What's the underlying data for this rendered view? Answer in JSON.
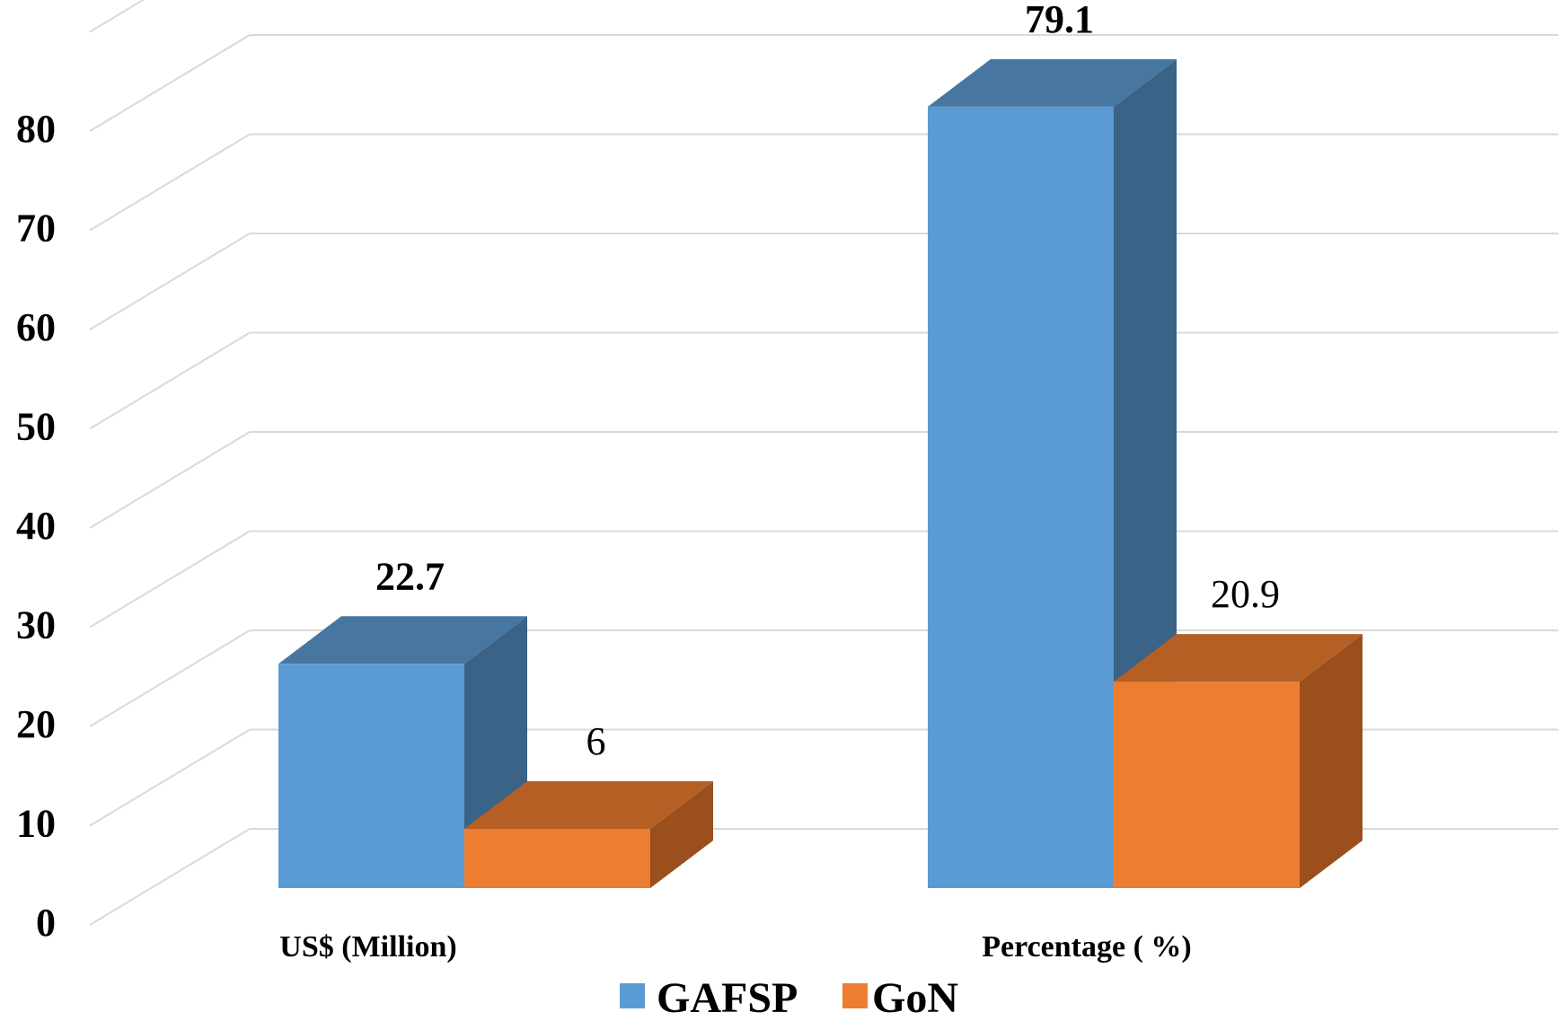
{
  "chart_data": {
    "type": "bar",
    "style": "3d-clustered-column",
    "categories": [
      "US$ (Million)",
      "Percentage (  %)"
    ],
    "series": [
      {
        "name": "GAFSP",
        "values": [
          22.7,
          79.1
        ],
        "value_labels": [
          "22.7",
          "79.1"
        ],
        "label_bold": true,
        "color": "#5B9BD5",
        "side_color": "#3A6387",
        "top_color": "#4777A1"
      },
      {
        "name": "GoN",
        "values": [
          6,
          20.9
        ],
        "value_labels": [
          "6",
          "20.9"
        ],
        "label_bold": false,
        "color": "#ED7D31",
        "side_color": "#9A4F1D",
        "top_color": "#B55F25"
      }
    ],
    "ylim": [
      0,
      90
    ],
    "yticks": [
      0,
      10,
      20,
      30,
      40,
      50,
      60,
      70,
      80
    ],
    "ytick_labels": [
      "0",
      "10",
      "20",
      "30",
      "40",
      "50",
      "60",
      "70",
      "80"
    ],
    "grid": true,
    "grid_color": "#D9D9D9",
    "legend": {
      "position": "bottom",
      "entries": [
        "GAFSP",
        "GoN"
      ]
    }
  }
}
